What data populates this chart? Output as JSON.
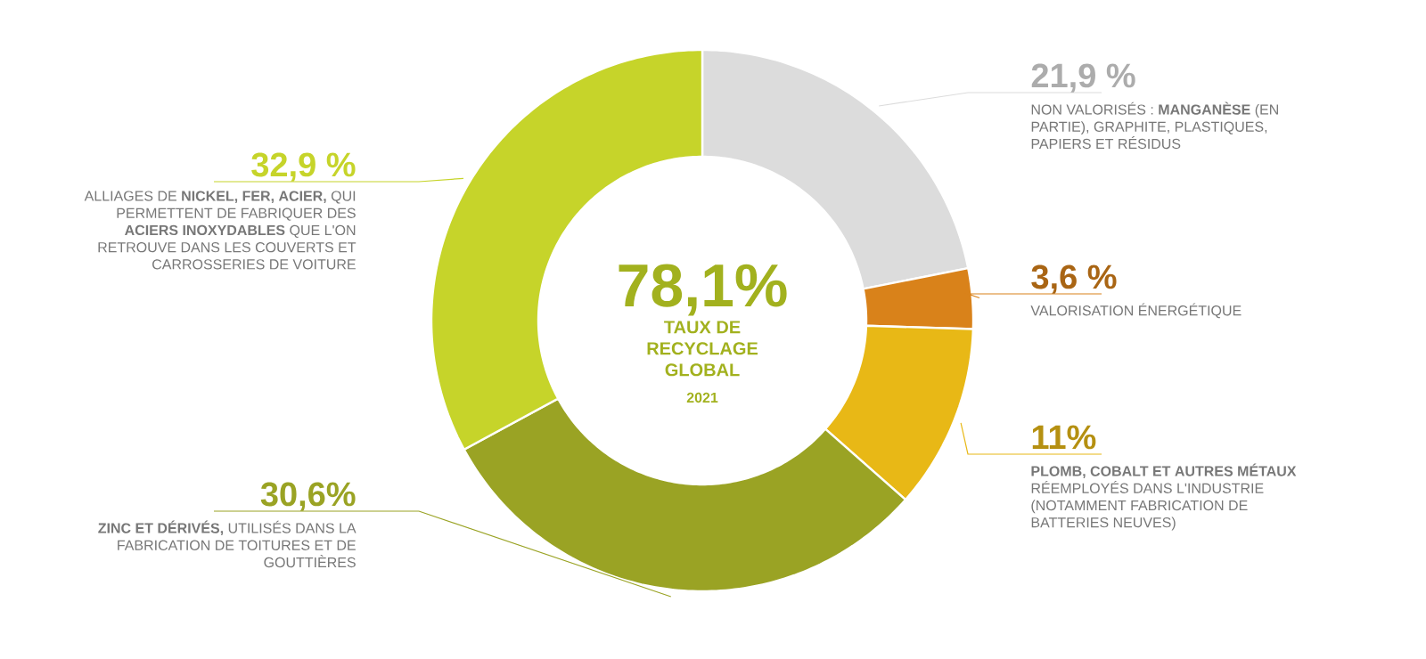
{
  "chart_data": {
    "type": "donut",
    "title": "78,1%",
    "subtitle": "TAUX DE RECYCLAGE GLOBAL",
    "annotations": [
      "2021"
    ],
    "categories": [
      "NON VALORISÉS : **MANGANÈSE** (EN PARTIE), GRAPHITE, PLASTIQUES, PAPIERS ET RÉSIDUS",
      "VALORISATION ÉNERGÉTIQUE",
      "**PLOMB, COBALT ET AUTRES MÉTAUX** RÉEMPLOYÉS DANS L'INDUSTRIE (NOTAMMENT FABRICATION DE BATTERIES NEUVES)",
      "**ZINC ET DÉRIVÉS,** UTILISÉS DANS LA FABRICATION DE TOITURES ET DE GOUTTIÈRES",
      "ALLIAGES DE **NICKEL, FER, ACIER,** QUI PERMETTENT DE FABRIQUER DES **ACIERS INOXYDABLES** QUE L'ON RETROUVE DANS LES COUVERTS ET CARROSSERIES DE VOITURE"
    ],
    "values": [
      21.9,
      3.6,
      11,
      30.6,
      32.9
    ],
    "colors": [
      "#dcdcdc",
      "#d9821a",
      "#e8b816",
      "#9aa324",
      "#c6d42a"
    ],
    "value_labels": [
      "21,9 %",
      "3,6 %",
      "11%",
      "30,6%",
      "32,9 %"
    ]
  }
}
